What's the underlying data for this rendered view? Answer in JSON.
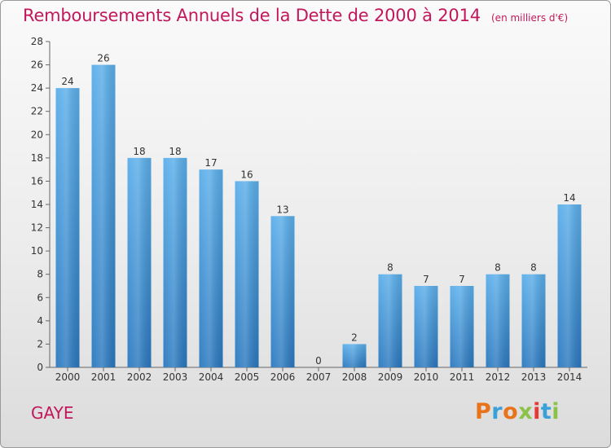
{
  "header": {
    "title": "Remboursements Annuels de la Dette de 2000 à 2014",
    "unit": "(en milliers d'€)"
  },
  "footer": {
    "commune": "GAYE",
    "logo_text": "Proxiti"
  },
  "colors": {
    "title": "#c2185b",
    "bar_top": "#5aaeea",
    "bar_bottom": "#2a78bf",
    "logo": [
      "#e8731a",
      "#3aa0d8",
      "#e8731a",
      "#8bc34a",
      "#e53935",
      "#3aa0d8",
      "#8bc34a"
    ]
  },
  "chart_data": {
    "type": "bar",
    "title": "Remboursements Annuels de la Dette de 2000 à 2014",
    "subtitle": "(en milliers d'€)",
    "categories": [
      "2000",
      "2001",
      "2002",
      "2003",
      "2004",
      "2005",
      "2006",
      "2007",
      "2008",
      "2009",
      "2010",
      "2011",
      "2012",
      "2013",
      "2014"
    ],
    "values": [
      24,
      26,
      18,
      18,
      17,
      16,
      13,
      0,
      2,
      8,
      7,
      7,
      8,
      8,
      14
    ],
    "ylim": [
      0,
      28
    ],
    "yticks": [
      0,
      2,
      4,
      6,
      8,
      10,
      12,
      14,
      16,
      18,
      20,
      22,
      24,
      26,
      28
    ],
    "grid": false,
    "data_labels": true
  }
}
